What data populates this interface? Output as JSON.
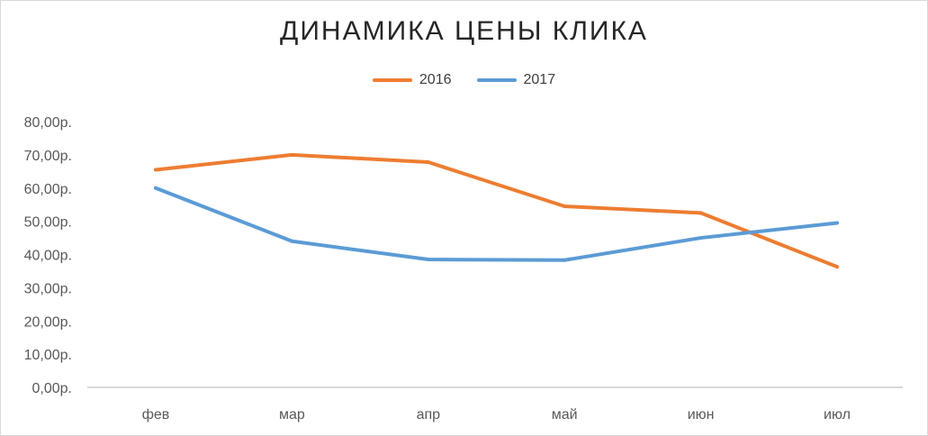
{
  "chart_data": {
    "type": "line",
    "title": "ДИНАМИКА ЦЕНЫ КЛИКА",
    "xlabel": "",
    "ylabel": "",
    "categories": [
      "фев",
      "мар",
      "апр",
      "май",
      "июн",
      "июл"
    ],
    "y_ticks": [
      "0,00р.",
      "10,00р.",
      "20,00р.",
      "30,00р.",
      "40,00р.",
      "50,00р.",
      "60,00р.",
      "70,00р.",
      "80,00р."
    ],
    "ylim": [
      0,
      80
    ],
    "grid": false,
    "legend_position": "top",
    "series": [
      {
        "name": "2016",
        "color": "#ED7D31",
        "values": [
          65.5,
          70,
          67.8,
          54.5,
          52.5,
          36.3
        ]
      },
      {
        "name": "2017",
        "color": "#5B9BD5",
        "values": [
          60,
          44,
          38.5,
          38.3,
          45,
          49.5
        ]
      }
    ]
  }
}
